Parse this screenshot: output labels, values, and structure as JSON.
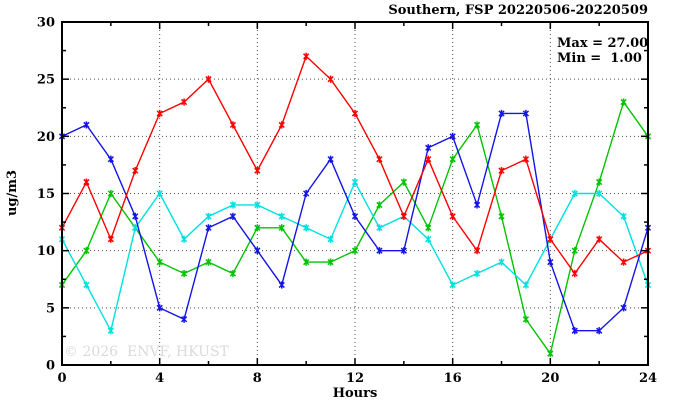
{
  "header": {
    "title": "Southern, FSP 20220506-20220509"
  },
  "annotations": {
    "max_label": "Max = 27.00",
    "min_label": "Min =  1.00",
    "watermark": "© 2026  ENVF, HKUST"
  },
  "axes": {
    "x_label": "Hours",
    "y_label": "ug/m3",
    "x_tick_labels": [
      "0",
      "4",
      "8",
      "12",
      "16",
      "20",
      "24"
    ],
    "y_tick_labels": [
      "0",
      "5",
      "10",
      "15",
      "20",
      "25",
      "30"
    ]
  },
  "chart_data": {
    "type": "line",
    "title": "Southern, FSP 20220506-20220509",
    "xlabel": "Hours",
    "ylabel": "ug/m3",
    "xlim": [
      0,
      24
    ],
    "ylim": [
      0,
      30
    ],
    "x_major_ticks": [
      0,
      4,
      8,
      12,
      16,
      20,
      24
    ],
    "x_minor_ticks": [
      2,
      6,
      10,
      14,
      18,
      22
    ],
    "y_major_ticks": [
      0,
      5,
      10,
      15,
      20,
      25,
      30
    ],
    "y_minor_ticks": [
      2.5,
      7.5,
      12.5,
      17.5,
      22.5,
      27.5
    ],
    "grid": true,
    "grid_x_lines": [
      4,
      8,
      12,
      16,
      20
    ],
    "grid_y_lines": [
      5,
      10,
      15,
      20,
      25
    ],
    "legend": "none",
    "x": [
      0,
      1,
      2,
      3,
      4,
      5,
      6,
      7,
      8,
      9,
      10,
      11,
      12,
      13,
      14,
      15,
      16,
      17,
      18,
      19,
      20,
      21,
      22,
      23,
      24
    ],
    "series": [
      {
        "name": "green-series",
        "color": "#00c400",
        "values": [
          7,
          10,
          15,
          12,
          9,
          8,
          9,
          8,
          12,
          12,
          9,
          9,
          10,
          14,
          16,
          12,
          18,
          21,
          13,
          4,
          1,
          10,
          16,
          23,
          20
        ]
      },
      {
        "name": "cyan-series",
        "color": "#00e0e0",
        "values": [
          11,
          7,
          3,
          12,
          15,
          11,
          13,
          14,
          14,
          13,
          12,
          11,
          16,
          12,
          13,
          11,
          7,
          8,
          9,
          7,
          11,
          15,
          15,
          13,
          7
        ]
      },
      {
        "name": "blue-series",
        "color": "#1414e6",
        "values": [
          20,
          21,
          18,
          13,
          5,
          4,
          12,
          13,
          10,
          7,
          15,
          18,
          13,
          10,
          10,
          19,
          20,
          14,
          22,
          22,
          9,
          3,
          3,
          5,
          12
        ]
      },
      {
        "name": "red-series",
        "color": "#ff0000",
        "values": [
          12,
          16,
          11,
          17,
          22,
          23,
          25,
          21,
          17,
          21,
          27,
          25,
          22,
          18,
          13,
          18,
          13,
          10,
          17,
          18,
          11,
          8,
          11,
          9,
          10
        ]
      }
    ],
    "stats": {
      "max": 27.0,
      "min": 1.0
    }
  }
}
